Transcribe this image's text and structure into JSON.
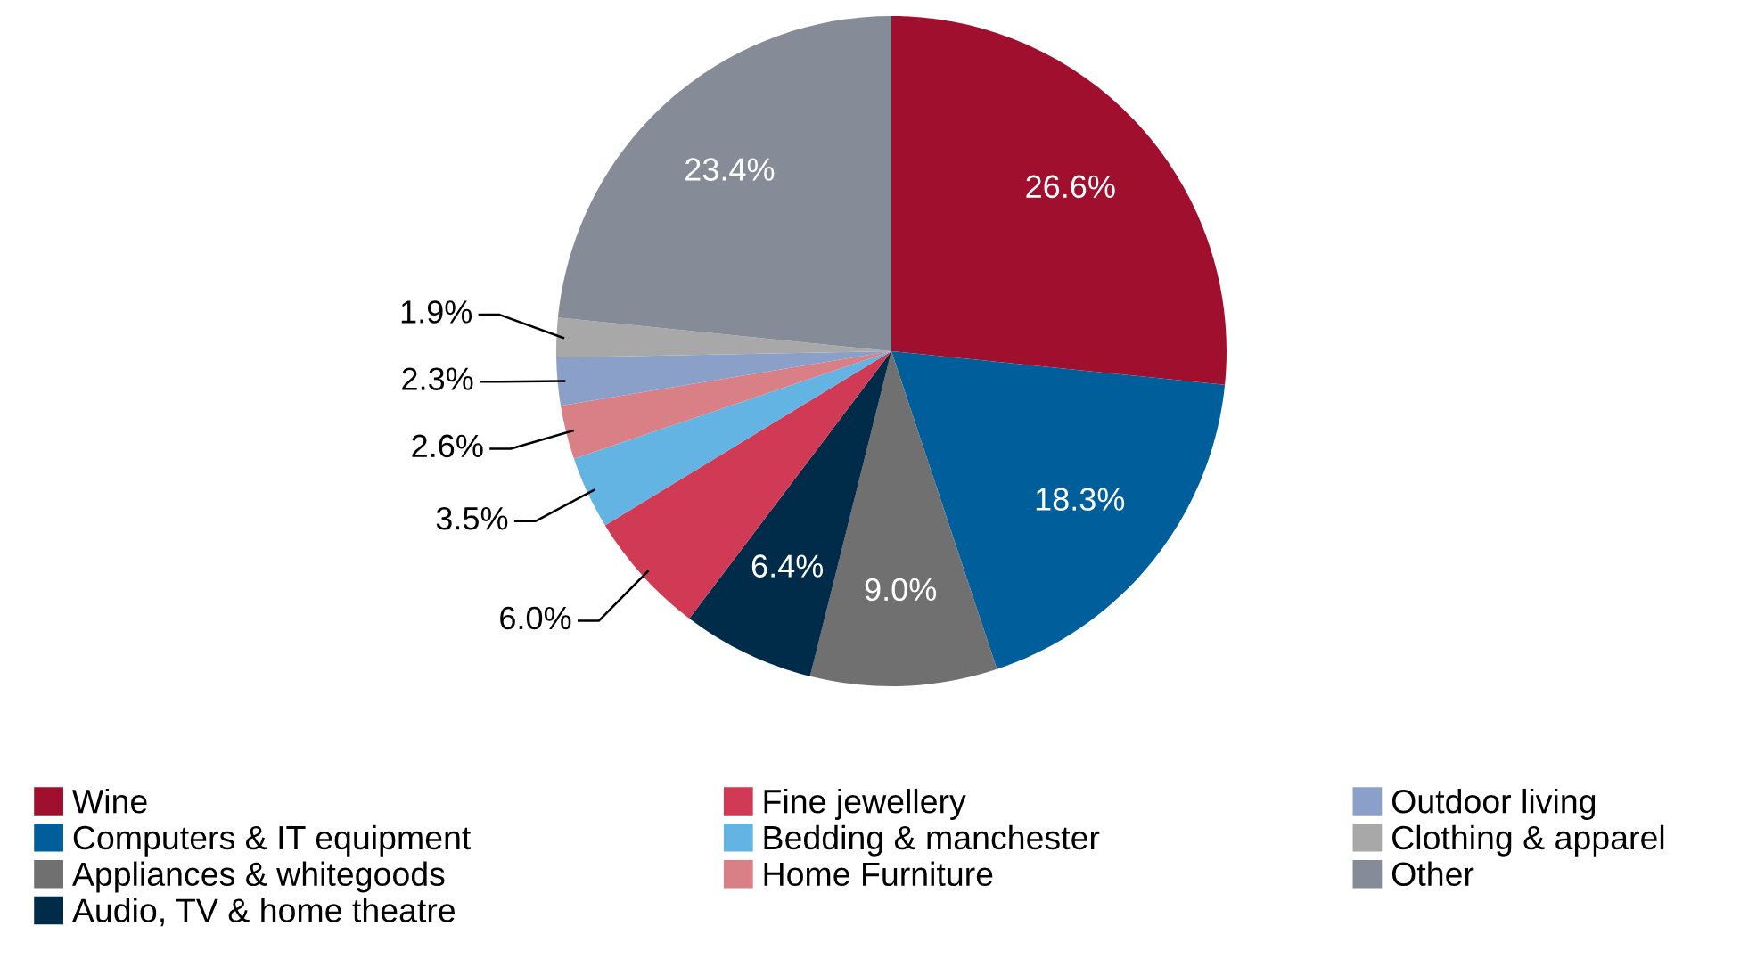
{
  "chart_data": {
    "type": "pie",
    "categories": [
      "Wine",
      "Computers & IT equipment",
      "Appliances & whitegoods",
      "Audio, TV & home theatre",
      "Fine jewellery",
      "Bedding & manchester",
      "Home Furniture",
      "Outdoor living",
      "Clothing & apparel",
      "Other"
    ],
    "values": [
      26.6,
      18.3,
      9.0,
      6.4,
      6.0,
      3.5,
      2.6,
      2.3,
      1.9,
      23.4
    ],
    "value_labels": [
      "26.6%",
      "18.3%",
      "9.0%",
      "6.4%",
      "6.0%",
      "3.5%",
      "2.6%",
      "2.3%",
      "1.9%",
      "23.4%"
    ],
    "colors": [
      "#a00f2d",
      "#005f9a",
      "#707070",
      "#002b49",
      "#d13a55",
      "#63b3e3",
      "#d98087",
      "#8aa0c8",
      "#a8a8a8",
      "#868b98"
    ],
    "legend": "bottom"
  }
}
